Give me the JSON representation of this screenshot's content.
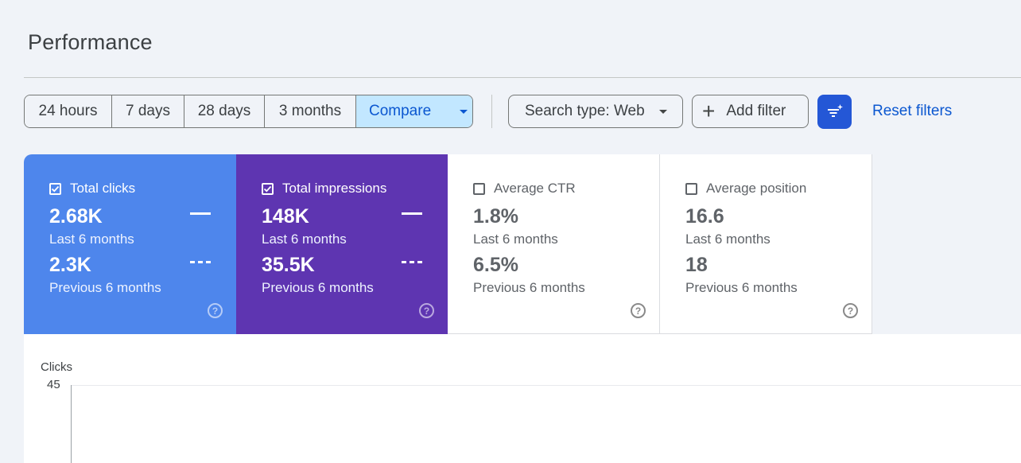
{
  "page": {
    "title": "Performance"
  },
  "toolbar": {
    "ranges": [
      "24 hours",
      "7 days",
      "28 days",
      "3 months"
    ],
    "compare_label": "Compare",
    "search_type_label": "Search type: Web",
    "add_filter_label": "Add filter",
    "reset_filters_label": "Reset filters",
    "selected": "Compare"
  },
  "metrics": [
    {
      "label": "Total clicks",
      "checked": true,
      "value": "2.68K",
      "period": "Last 6 months",
      "compare_value": "2.3K",
      "compare_period": "Previous 6 months",
      "color": "#4e86ec"
    },
    {
      "label": "Total impressions",
      "checked": true,
      "value": "148K",
      "period": "Last 6 months",
      "compare_value": "35.5K",
      "compare_period": "Previous 6 months",
      "color": "#5e35b1"
    },
    {
      "label": "Average CTR",
      "checked": false,
      "value": "1.8%",
      "period": "Last 6 months",
      "compare_value": "6.5%",
      "compare_period": "Previous 6 months",
      "color": "#ffffff"
    },
    {
      "label": "Average position",
      "checked": false,
      "value": "16.6",
      "period": "Last 6 months",
      "compare_value": "18",
      "compare_period": "Previous 6 months",
      "color": "#ffffff"
    }
  ],
  "chart": {
    "ylabel": "Clicks",
    "y_top_tick": "45"
  },
  "icons": {
    "caret": "chevron-down-icon",
    "plus": "plus-icon",
    "ai": "filter-sparkle-icon",
    "help": "help-icon",
    "checkbox": "checkbox-icon"
  }
}
